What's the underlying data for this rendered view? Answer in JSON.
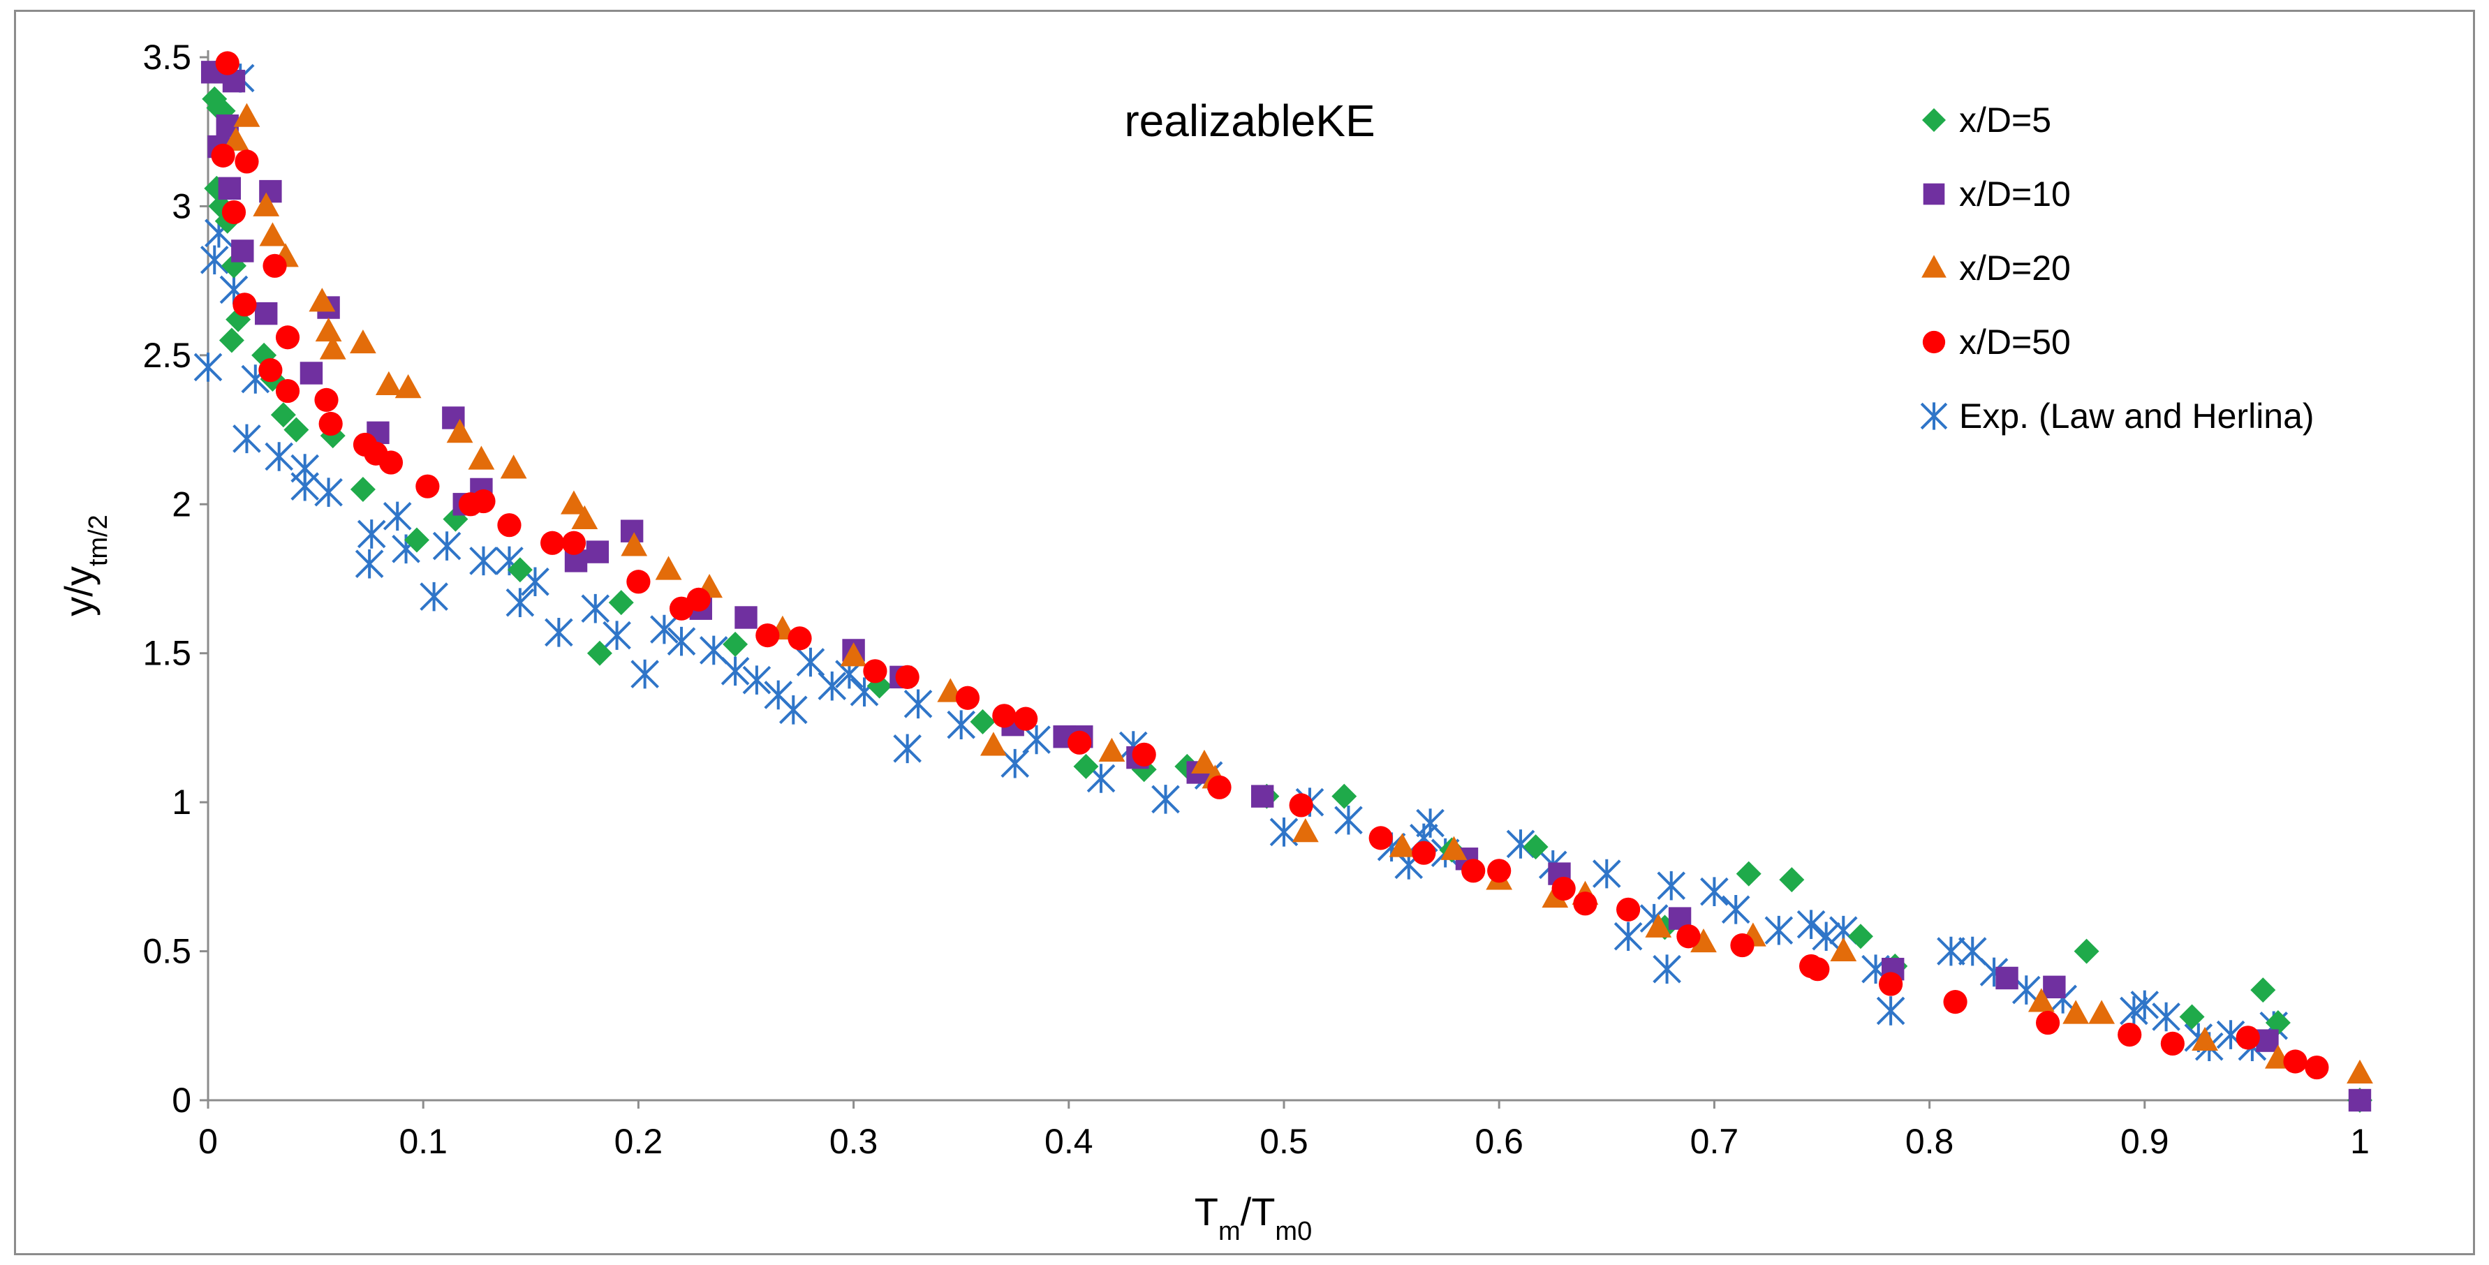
{
  "chart_data": {
    "type": "scatter",
    "title": "realizableKE",
    "xlabel": {
      "main": "T",
      "sub": "m",
      "sep": "/T",
      "sub2": "m0"
    },
    "ylabel": {
      "main": "y/y",
      "sub": "tm/2"
    },
    "xlim": [
      0,
      1
    ],
    "ylim": [
      0,
      3.5
    ],
    "x_ticks": [
      "0",
      "0.1",
      "0.2",
      "0.3",
      "0.4",
      "0.5",
      "0.6",
      "0.7",
      "0.8",
      "0.9",
      "1"
    ],
    "y_ticks": [
      "0",
      "0.5",
      "1",
      "1.5",
      "2",
      "2.5",
      "3",
      "3.5"
    ],
    "grid": false,
    "legend_position": "top-right",
    "series": [
      {
        "name": "x/D=5",
        "marker": "diamond",
        "color": "#1faa4a",
        "points": [
          [
            0.003,
            3.36
          ],
          [
            0.005,
            3.33
          ],
          [
            0.007,
            3.32
          ],
          [
            0.004,
            3.06
          ],
          [
            0.006,
            3.0
          ],
          [
            0.009,
            2.95
          ],
          [
            0.012,
            2.8
          ],
          [
            0.014,
            2.62
          ],
          [
            0.011,
            2.55
          ],
          [
            0.026,
            2.5
          ],
          [
            0.03,
            2.42
          ],
          [
            0.035,
            2.3
          ],
          [
            0.041,
            2.25
          ],
          [
            0.058,
            2.23
          ],
          [
            0.072,
            2.05
          ],
          [
            0.097,
            1.88
          ],
          [
            0.115,
            1.95
          ],
          [
            0.145,
            1.78
          ],
          [
            0.182,
            1.5
          ],
          [
            0.192,
            1.67
          ],
          [
            0.245,
            1.53
          ],
          [
            0.312,
            1.39
          ],
          [
            0.36,
            1.27
          ],
          [
            0.408,
            1.12
          ],
          [
            0.435,
            1.11
          ],
          [
            0.455,
            1.12
          ],
          [
            0.492,
            1.02
          ],
          [
            0.528,
            1.02
          ],
          [
            0.578,
            0.84
          ],
          [
            0.617,
            0.85
          ],
          [
            0.677,
            0.58
          ],
          [
            0.716,
            0.76
          ],
          [
            0.736,
            0.74
          ],
          [
            0.768,
            0.55
          ],
          [
            0.784,
            0.45
          ],
          [
            0.873,
            0.5
          ],
          [
            0.922,
            0.28
          ],
          [
            0.955,
            0.37
          ],
          [
            0.962,
            0.26
          ],
          [
            1.0,
            0.0
          ]
        ]
      },
      {
        "name": "x/D=10",
        "marker": "square",
        "color": "#7030a0",
        "points": [
          [
            0.002,
            3.45
          ],
          [
            0.008,
            3.45
          ],
          [
            0.012,
            3.42
          ],
          [
            0.009,
            3.27
          ],
          [
            0.005,
            3.2
          ],
          [
            0.01,
            3.06
          ],
          [
            0.029,
            3.05
          ],
          [
            0.016,
            2.85
          ],
          [
            0.027,
            2.64
          ],
          [
            0.056,
            2.66
          ],
          [
            0.048,
            2.44
          ],
          [
            0.079,
            2.24
          ],
          [
            0.114,
            2.29
          ],
          [
            0.119,
            2.0
          ],
          [
            0.127,
            2.05
          ],
          [
            0.171,
            1.81
          ],
          [
            0.181,
            1.84
          ],
          [
            0.197,
            1.91
          ],
          [
            0.229,
            1.65
          ],
          [
            0.25,
            1.62
          ],
          [
            0.3,
            1.51
          ],
          [
            0.322,
            1.42
          ],
          [
            0.374,
            1.26
          ],
          [
            0.398,
            1.22
          ],
          [
            0.406,
            1.22
          ],
          [
            0.432,
            1.15
          ],
          [
            0.46,
            1.1
          ],
          [
            0.49,
            1.02
          ],
          [
            0.585,
            0.81
          ],
          [
            0.628,
            0.76
          ],
          [
            0.684,
            0.61
          ],
          [
            0.783,
            0.44
          ],
          [
            0.836,
            0.41
          ],
          [
            0.858,
            0.38
          ],
          [
            0.957,
            0.2
          ],
          [
            1.0,
            0.0
          ]
        ]
      },
      {
        "name": "x/D=20",
        "marker": "triangle",
        "color": "#e36c0a",
        "points": [
          [
            0.018,
            3.3
          ],
          [
            0.013,
            3.22
          ],
          [
            0.027,
            3.0
          ],
          [
            0.03,
            2.9
          ],
          [
            0.036,
            2.83
          ],
          [
            0.053,
            2.68
          ],
          [
            0.056,
            2.58
          ],
          [
            0.058,
            2.52
          ],
          [
            0.072,
            2.54
          ],
          [
            0.084,
            2.4
          ],
          [
            0.093,
            2.39
          ],
          [
            0.117,
            2.24
          ],
          [
            0.127,
            2.15
          ],
          [
            0.142,
            2.12
          ],
          [
            0.17,
            2.0
          ],
          [
            0.175,
            1.95
          ],
          [
            0.198,
            1.86
          ],
          [
            0.214,
            1.78
          ],
          [
            0.233,
            1.72
          ],
          [
            0.267,
            1.58
          ],
          [
            0.3,
            1.49
          ],
          [
            0.345,
            1.37
          ],
          [
            0.365,
            1.19
          ],
          [
            0.42,
            1.17
          ],
          [
            0.463,
            1.13
          ],
          [
            0.468,
            1.08
          ],
          [
            0.51,
            0.9
          ],
          [
            0.555,
            0.85
          ],
          [
            0.579,
            0.84
          ],
          [
            0.6,
            0.74
          ],
          [
            0.626,
            0.68
          ],
          [
            0.64,
            0.69
          ],
          [
            0.674,
            0.58
          ],
          [
            0.695,
            0.53
          ],
          [
            0.718,
            0.55
          ],
          [
            0.76,
            0.5
          ],
          [
            0.852,
            0.33
          ],
          [
            0.868,
            0.29
          ],
          [
            0.88,
            0.29
          ],
          [
            0.928,
            0.2
          ],
          [
            0.962,
            0.14
          ],
          [
            1.0,
            0.09
          ]
        ]
      },
      {
        "name": "x/D=50",
        "marker": "circle",
        "color": "#ff0000",
        "points": [
          [
            0.009,
            3.48
          ],
          [
            0.007,
            3.17
          ],
          [
            0.018,
            3.15
          ],
          [
            0.012,
            2.98
          ],
          [
            0.017,
            2.67
          ],
          [
            0.031,
            2.8
          ],
          [
            0.037,
            2.56
          ],
          [
            0.029,
            2.45
          ],
          [
            0.037,
            2.38
          ],
          [
            0.055,
            2.35
          ],
          [
            0.057,
            2.27
          ],
          [
            0.073,
            2.2
          ],
          [
            0.078,
            2.17
          ],
          [
            0.085,
            2.14
          ],
          [
            0.102,
            2.06
          ],
          [
            0.122,
            2.0
          ],
          [
            0.128,
            2.01
          ],
          [
            0.14,
            1.93
          ],
          [
            0.17,
            1.87
          ],
          [
            0.16,
            1.87
          ],
          [
            0.2,
            1.74
          ],
          [
            0.22,
            1.65
          ],
          [
            0.228,
            1.68
          ],
          [
            0.26,
            1.56
          ],
          [
            0.275,
            1.55
          ],
          [
            0.31,
            1.44
          ],
          [
            0.325,
            1.42
          ],
          [
            0.353,
            1.35
          ],
          [
            0.37,
            1.29
          ],
          [
            0.38,
            1.28
          ],
          [
            0.405,
            1.2
          ],
          [
            0.435,
            1.16
          ],
          [
            0.47,
            1.05
          ],
          [
            0.508,
            0.99
          ],
          [
            0.545,
            0.88
          ],
          [
            0.565,
            0.83
          ],
          [
            0.588,
            0.77
          ],
          [
            0.6,
            0.77
          ],
          [
            0.63,
            0.71
          ],
          [
            0.64,
            0.66
          ],
          [
            0.66,
            0.64
          ],
          [
            0.688,
            0.55
          ],
          [
            0.713,
            0.52
          ],
          [
            0.745,
            0.45
          ],
          [
            0.748,
            0.44
          ],
          [
            0.782,
            0.39
          ],
          [
            0.812,
            0.33
          ],
          [
            0.855,
            0.26
          ],
          [
            0.893,
            0.22
          ],
          [
            0.913,
            0.19
          ],
          [
            0.948,
            0.21
          ],
          [
            0.97,
            0.13
          ],
          [
            0.98,
            0.11
          ]
        ]
      },
      {
        "name": "Exp. (Law and Herlina)",
        "marker": "asterisk",
        "color": "#2f75c8",
        "points": [
          [
            0.0,
            2.46
          ],
          [
            0.003,
            2.82
          ],
          [
            0.005,
            2.91
          ],
          [
            0.015,
            3.43
          ],
          [
            0.012,
            2.72
          ],
          [
            0.018,
            2.22
          ],
          [
            0.022,
            2.42
          ],
          [
            0.033,
            2.16
          ],
          [
            0.045,
            2.06
          ],
          [
            0.045,
            2.12
          ],
          [
            0.056,
            2.04
          ],
          [
            0.075,
            1.8
          ],
          [
            0.076,
            1.9
          ],
          [
            0.088,
            1.96
          ],
          [
            0.092,
            1.85
          ],
          [
            0.105,
            1.69
          ],
          [
            0.111,
            1.86
          ],
          [
            0.128,
            1.81
          ],
          [
            0.14,
            1.81
          ],
          [
            0.145,
            1.67
          ],
          [
            0.152,
            1.74
          ],
          [
            0.163,
            1.57
          ],
          [
            0.18,
            1.65
          ],
          [
            0.19,
            1.56
          ],
          [
            0.203,
            1.43
          ],
          [
            0.212,
            1.58
          ],
          [
            0.22,
            1.54
          ],
          [
            0.235,
            1.51
          ],
          [
            0.245,
            1.44
          ],
          [
            0.255,
            1.41
          ],
          [
            0.265,
            1.36
          ],
          [
            0.272,
            1.31
          ],
          [
            0.28,
            1.47
          ],
          [
            0.29,
            1.39
          ],
          [
            0.298,
            1.43
          ],
          [
            0.305,
            1.37
          ],
          [
            0.325,
            1.18
          ],
          [
            0.33,
            1.33
          ],
          [
            0.35,
            1.26
          ],
          [
            0.375,
            1.13
          ],
          [
            0.385,
            1.21
          ],
          [
            0.415,
            1.08
          ],
          [
            0.43,
            1.19
          ],
          [
            0.445,
            1.01
          ],
          [
            0.465,
            1.09
          ],
          [
            0.5,
            0.9
          ],
          [
            0.512,
            1.0
          ],
          [
            0.53,
            0.94
          ],
          [
            0.55,
            0.85
          ],
          [
            0.558,
            0.79
          ],
          [
            0.565,
            0.88
          ],
          [
            0.568,
            0.93
          ],
          [
            0.575,
            0.83
          ],
          [
            0.61,
            0.86
          ],
          [
            0.625,
            0.79
          ],
          [
            0.65,
            0.76
          ],
          [
            0.66,
            0.55
          ],
          [
            0.672,
            0.61
          ],
          [
            0.678,
            0.44
          ],
          [
            0.68,
            0.72
          ],
          [
            0.7,
            0.7
          ],
          [
            0.71,
            0.64
          ],
          [
            0.73,
            0.57
          ],
          [
            0.745,
            0.59
          ],
          [
            0.752,
            0.55
          ],
          [
            0.76,
            0.57
          ],
          [
            0.775,
            0.44
          ],
          [
            0.782,
            0.3
          ],
          [
            0.81,
            0.5
          ],
          [
            0.82,
            0.5
          ],
          [
            0.83,
            0.43
          ],
          [
            0.845,
            0.37
          ],
          [
            0.862,
            0.34
          ],
          [
            0.895,
            0.3
          ],
          [
            0.9,
            0.32
          ],
          [
            0.91,
            0.28
          ],
          [
            0.925,
            0.21
          ],
          [
            0.93,
            0.18
          ],
          [
            0.94,
            0.22
          ],
          [
            0.95,
            0.18
          ],
          [
            0.96,
            0.25
          ]
        ]
      }
    ]
  }
}
